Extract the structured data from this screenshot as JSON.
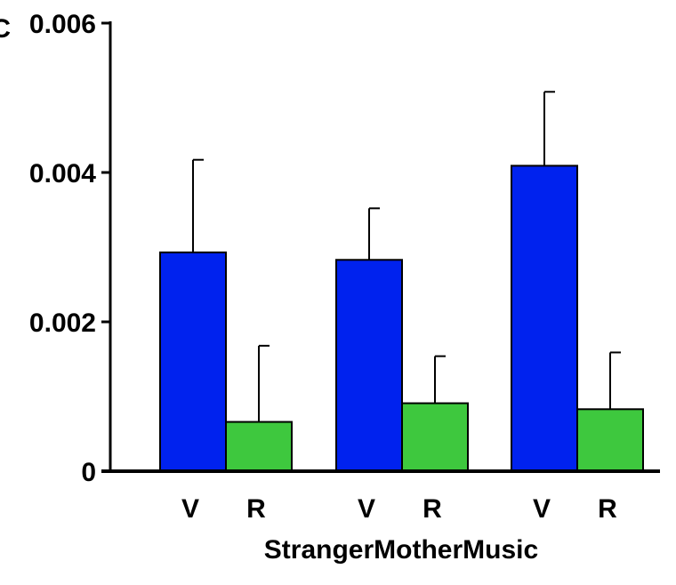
{
  "chart_data": {
    "type": "bar",
    "panel_letter": "C",
    "title": "",
    "xlabel": "",
    "ylabel": "",
    "ylim": [
      0,
      0.006
    ],
    "yticks": [
      {
        "value": 0,
        "label": "0"
      },
      {
        "value": 0.002,
        "label": "0.002"
      },
      {
        "value": 0.004,
        "label": "0.004"
      },
      {
        "value": 0.006,
        "label": "0.006"
      }
    ],
    "groups": [
      "Stranger",
      "Mother",
      "Music"
    ],
    "group_label_text": "StrangerMotherMusic",
    "bar_labels": [
      "V",
      "R",
      "V",
      "R",
      "V",
      "R"
    ],
    "bars": [
      {
        "group": "Stranger",
        "label": "V",
        "value": 0.00293,
        "error": 0.00124,
        "color": "#0022ee"
      },
      {
        "group": "Stranger",
        "label": "R",
        "value": 0.00066,
        "error": 0.00102,
        "color": "#3ec83e"
      },
      {
        "group": "Mother",
        "label": "V",
        "value": 0.00283,
        "error": 0.00069,
        "color": "#0022ee"
      },
      {
        "group": "Mother",
        "label": "R",
        "value": 0.00091,
        "error": 0.00063,
        "color": "#3ec83e"
      },
      {
        "group": "Music",
        "label": "V",
        "value": 0.00409,
        "error": 0.00099,
        "color": "#0022ee"
      },
      {
        "group": "Music",
        "label": "R",
        "value": 0.00083,
        "error": 0.00076,
        "color": "#3ec83e"
      }
    ],
    "grid": false,
    "legend": "none",
    "colors": {
      "V": "#0022ee",
      "R": "#3ec83e",
      "axis": "#000000"
    }
  }
}
